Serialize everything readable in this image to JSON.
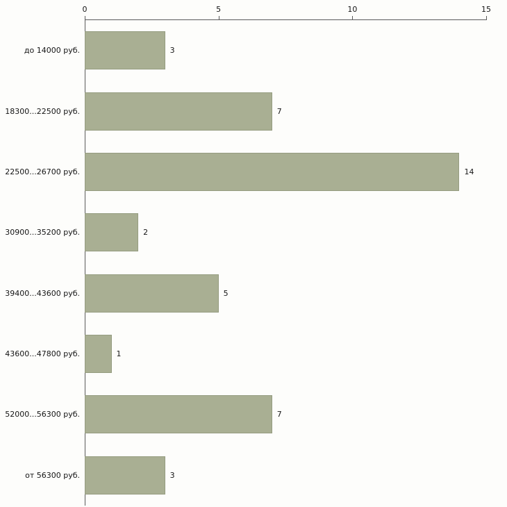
{
  "chart_data": {
    "type": "bar",
    "orientation": "horizontal",
    "title": "",
    "xlabel": "",
    "ylabel": "",
    "categories": [
      "до 14000 руб.",
      "18300...22500 руб.",
      "22500...26700 руб.",
      "30900...35200 руб.",
      "39400...43600 руб.",
      "43600...47800 руб.",
      "52000...56300 руб.",
      "от 56300 руб."
    ],
    "values": [
      3,
      7,
      14,
      2,
      5,
      1,
      7,
      3
    ],
    "xlim": [
      0,
      15
    ],
    "x_ticks": [
      0,
      5,
      10,
      15
    ],
    "grid": false,
    "legend": false,
    "axis_position": "top",
    "colors": {
      "bar_fill": "#a9af93",
      "bar_border": "#959c80",
      "axis_line": "#5a5a5a",
      "text": "#141414",
      "background": "#fdfdfb"
    }
  }
}
